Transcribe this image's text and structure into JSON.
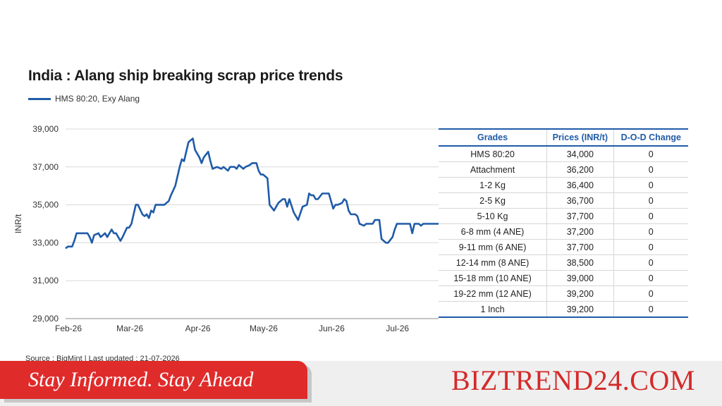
{
  "chart_data": {
    "type": "line",
    "title": "India : Alang ship breaking scrap price trends",
    "ylabel": "INR/t",
    "ylim": [
      29000,
      39000
    ],
    "yticks": [
      "29,000",
      "31,000",
      "33,000",
      "35,000",
      "37,000",
      "39,000"
    ],
    "ytick_values": [
      29000,
      31000,
      33000,
      35000,
      37000,
      39000
    ],
    "xticks": [
      "Feb-26",
      "Mar-26",
      "Apr-26",
      "May-26",
      "Jun-26",
      "Jul-26"
    ],
    "xlim": [
      "2026-02-01",
      "2026-07-21"
    ],
    "grid": "horizontal",
    "legend_position": "top-left",
    "series": [
      {
        "name": "HMS 80:20, Exy Alang",
        "color": "#1f5ba8",
        "x": [
          "2026-02-01",
          "2026-02-02",
          "2026-02-04",
          "2026-02-05",
          "2026-02-06",
          "2026-02-08",
          "2026-02-11",
          "2026-02-12",
          "2026-02-13",
          "2026-02-14",
          "2026-02-16",
          "2026-02-17",
          "2026-02-19",
          "2026-02-20",
          "2026-02-22",
          "2026-02-23",
          "2026-02-24",
          "2026-02-26",
          "2026-02-27",
          "2026-03-01",
          "2026-03-02",
          "2026-03-03",
          "2026-03-05",
          "2026-03-06",
          "2026-03-08",
          "2026-03-09",
          "2026-03-10",
          "2026-03-11",
          "2026-03-12",
          "2026-03-13",
          "2026-03-14",
          "2026-03-16",
          "2026-03-17",
          "2026-03-18",
          "2026-03-20",
          "2026-03-21",
          "2026-03-23",
          "2026-03-25",
          "2026-03-26",
          "2026-03-27",
          "2026-03-29",
          "2026-03-31",
          "2026-04-01",
          "2026-04-03",
          "2026-04-04",
          "2026-04-05",
          "2026-04-07",
          "2026-04-08",
          "2026-04-09",
          "2026-04-11",
          "2026-04-13",
          "2026-04-14",
          "2026-04-16",
          "2026-04-17",
          "2026-04-18",
          "2026-04-19",
          "2026-04-20",
          "2026-04-21",
          "2026-04-23",
          "2026-04-24",
          "2026-04-26",
          "2026-04-27",
          "2026-04-29",
          "2026-04-30",
          "2026-05-01",
          "2026-05-02",
          "2026-05-04",
          "2026-05-05",
          "2026-05-07",
          "2026-05-09",
          "2026-05-11",
          "2026-05-12",
          "2026-05-13",
          "2026-05-14",
          "2026-05-16",
          "2026-05-17",
          "2026-05-18",
          "2026-05-20",
          "2026-05-22",
          "2026-05-23",
          "2026-05-24",
          "2026-05-25",
          "2026-05-26",
          "2026-05-27",
          "2026-05-29",
          "2026-05-30",
          "2026-06-01",
          "2026-06-02",
          "2026-06-03",
          "2026-06-04",
          "2026-06-05",
          "2026-06-07",
          "2026-06-08",
          "2026-06-09",
          "2026-06-10",
          "2026-06-11",
          "2026-06-13",
          "2026-06-14",
          "2026-06-15",
          "2026-06-17",
          "2026-06-18",
          "2026-06-19",
          "2026-06-21",
          "2026-06-22",
          "2026-06-24",
          "2026-06-25",
          "2026-06-27",
          "2026-06-28",
          "2026-06-30",
          "2026-07-01",
          "2026-07-02",
          "2026-07-04",
          "2026-07-05",
          "2026-07-07",
          "2026-07-08",
          "2026-07-09",
          "2026-07-10",
          "2026-07-12",
          "2026-07-13",
          "2026-07-14",
          "2026-07-15",
          "2026-07-17",
          "2026-07-18",
          "2026-07-19",
          "2026-07-20",
          "2026-07-21"
        ],
        "values": [
          32700,
          32800,
          32800,
          33100,
          33500,
          33500,
          33500,
          33300,
          33000,
          33400,
          33500,
          33300,
          33500,
          33300,
          33700,
          33500,
          33500,
          33100,
          33300,
          33800,
          33800,
          34000,
          35000,
          35000,
          34500,
          34400,
          34500,
          34300,
          34700,
          34600,
          35000,
          35000,
          35000,
          35000,
          35200,
          35500,
          36000,
          37000,
          37400,
          37300,
          38300,
          38500,
          37900,
          37500,
          37200,
          37500,
          37800,
          37300,
          36900,
          37000,
          36900,
          37000,
          36800,
          37000,
          37000,
          37000,
          36900,
          37100,
          36900,
          37000,
          37100,
          37200,
          37200,
          36800,
          36600,
          36600,
          36400,
          35000,
          34700,
          35100,
          35300,
          35300,
          34900,
          35300,
          34600,
          34400,
          34200,
          34900,
          35000,
          35600,
          35500,
          35500,
          35300,
          35300,
          35600,
          35600,
          35600,
          35200,
          34800,
          35000,
          35000,
          35100,
          35300,
          35200,
          34700,
          34500,
          34500,
          34400,
          34000,
          33900,
          34000,
          34000,
          34000,
          34200,
          34200,
          33200,
          33000,
          33000,
          33300,
          33700,
          34000,
          34000,
          34000,
          34000,
          34000,
          33500,
          34000,
          34000,
          33900,
          34000,
          34000,
          34000,
          34000,
          34000,
          34000,
          34000
        ]
      }
    ]
  },
  "table": {
    "headers": [
      "Grades",
      "Prices (INR/t)",
      "D-O-D Change"
    ],
    "rows": [
      [
        "HMS 80:20",
        "34,000",
        "0"
      ],
      [
        "Attachment",
        "36,200",
        "0"
      ],
      [
        "1-2 Kg",
        "36,400",
        "0"
      ],
      [
        "2-5 Kg",
        "36,700",
        "0"
      ],
      [
        "5-10 Kg",
        "37,700",
        "0"
      ],
      [
        "6-8 mm (4 ANE)",
        "37,200",
        "0"
      ],
      [
        "9-11 mm (6 ANE)",
        "37,700",
        "0"
      ],
      [
        "12-14 mm (8 ANE)",
        "38,500",
        "0"
      ],
      [
        "15-18 mm (10 ANE)",
        "39,000",
        "0"
      ],
      [
        "19-22 mm (12 ANE)",
        "39,200",
        "0"
      ],
      [
        "1 Inch",
        "39,200",
        "0"
      ]
    ]
  },
  "source": "Source : BigMint | Last updated : 21-07-2026",
  "footer": {
    "tagline": "Stay Informed. Stay Ahead",
    "brand": "BIZTREND24.COM",
    "banner_color": "#e02b2b",
    "brand_color": "#d52a2a"
  }
}
